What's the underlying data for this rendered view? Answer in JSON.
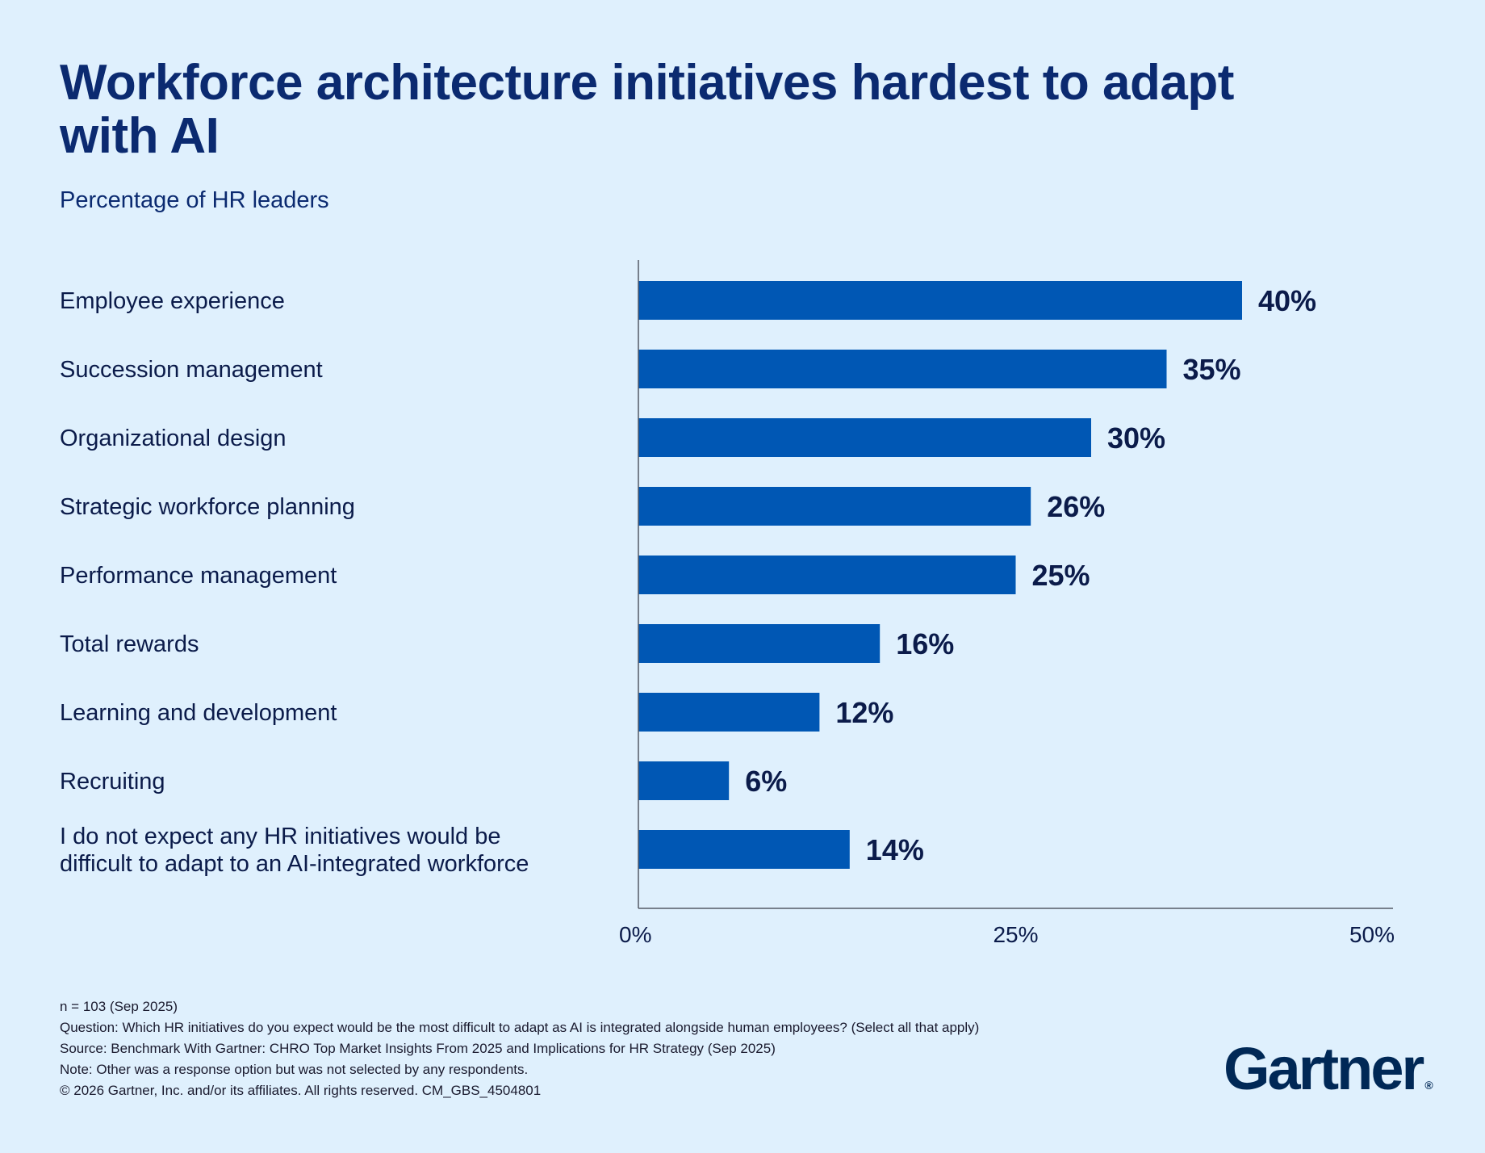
{
  "header": {
    "title": "Workforce architecture initiatives hardest to adapt with AI",
    "subtitle": "Percentage of HR leaders"
  },
  "chart_data": {
    "type": "bar",
    "orientation": "horizontal",
    "categories": [
      [
        "Employee experience"
      ],
      [
        "Succession management"
      ],
      [
        "Organizational design"
      ],
      [
        "Strategic workforce planning"
      ],
      [
        "Performance management"
      ],
      [
        "Total rewards"
      ],
      [
        "Learning and development"
      ],
      [
        "Recruiting"
      ],
      [
        "I do not expect any HR initiatives would be",
        "difficult to adapt to an AI-integrated workforce"
      ]
    ],
    "values": [
      40,
      35,
      30,
      26,
      25,
      16,
      12,
      6,
      14
    ],
    "value_labels": [
      "40%",
      "35%",
      "30%",
      "26%",
      "25%",
      "16%",
      "12%",
      "6%",
      "14%"
    ],
    "xlim": [
      0,
      50
    ],
    "ticks": [
      0,
      25,
      50
    ],
    "tick_labels": [
      "0%",
      "25%",
      "50%"
    ],
    "grid": false,
    "bar_color": "#0057b4"
  },
  "footer": {
    "n": "n = 103 (Sep 2025)",
    "question": "Question: Which HR initiatives do you expect would be the most difficult to adapt as AI is integrated alongside human employees? (Select all that apply)",
    "source": "Source: Benchmark With Gartner: CHRO Top Market Insights From 2025 and Implications for HR Strategy (Sep 2025)",
    "note": "Note: Other was a response option but was not selected by any respondents.",
    "copyright": "© 2026 Gartner, Inc. and/or its affiliates. All rights reserved. CM_GBS_4504801"
  },
  "logo": {
    "text": "Gartner",
    "mark": "®"
  }
}
